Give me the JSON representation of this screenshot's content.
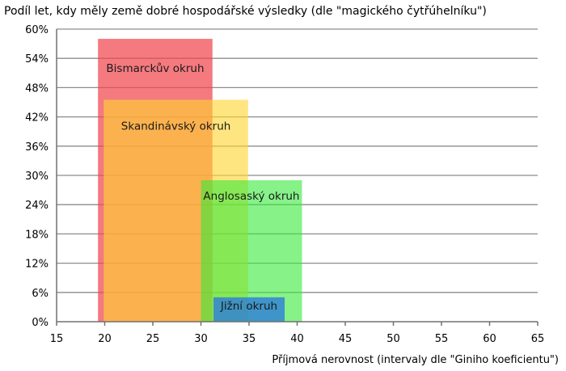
{
  "chart_data": {
    "type": "bar",
    "title": "Podíl let, kdy měly země dobré hospodářské výsledky (dle \"magického čytřúhelníku\")",
    "xlabel": "Příjmová nerovnost (intervaly dle \"Giniho koeficientu\")",
    "ylabel": "",
    "xlim": [
      15,
      65
    ],
    "ylim": [
      0,
      60
    ],
    "x_ticks": [
      "15",
      "20",
      "25",
      "30",
      "35",
      "40",
      "45",
      "50",
      "55",
      "60",
      "65"
    ],
    "y_ticks": [
      "0%",
      "6%",
      "12%",
      "18%",
      "24%",
      "30%",
      "36%",
      "42%",
      "48%",
      "54%",
      "60%"
    ],
    "grid": true,
    "series": [
      {
        "name": "Bismarckův okruh",
        "x_range": [
          19.3,
          31.2
        ],
        "value": 58,
        "color": "#f0474e",
        "opacity": 0.72
      },
      {
        "name": "Skandinávský okruh",
        "x_range": [
          19.9,
          34.9
        ],
        "value": 45.5,
        "color": "#ffd531",
        "opacity": 0.62
      },
      {
        "name": "Anglosaský okruh",
        "x_range": [
          30.0,
          40.5
        ],
        "value": 29,
        "color": "#36ea38",
        "opacity": 0.6
      },
      {
        "name": "Jižní okruh",
        "x_range": [
          31.3,
          38.7
        ],
        "value": 5,
        "color": "#2d7cd9",
        "opacity": 0.8
      }
    ]
  }
}
